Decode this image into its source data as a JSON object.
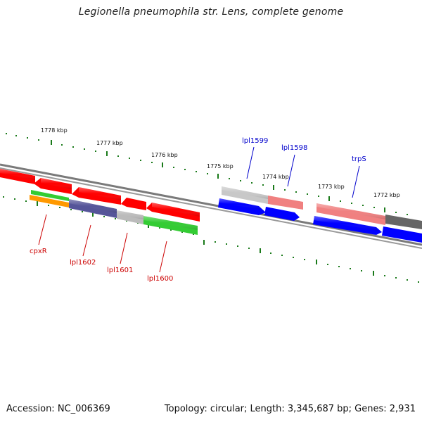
{
  "title": "Legionella pneumophila str. Lens, complete genome",
  "footer": {
    "accession": "Accession: NC_006369",
    "summary": "Topology: circular; Length: 3,345,687 bp; Genes: 2,931"
  },
  "ruler": {
    "kbp_labels": [
      "1778 kbp",
      "1777 kbp",
      "1776 kbp",
      "1775 kbp",
      "1774 kbp",
      "1773 kbp",
      "1772 kbp"
    ],
    "tick_color": "#1a7a1a"
  },
  "backbone_color": "#808080",
  "genes": [
    {
      "label": "",
      "strand": "forward",
      "color": "#ff0000"
    },
    {
      "label": "",
      "strand": "forward",
      "color": "#ff0000"
    },
    {
      "label": "",
      "strand": "forward",
      "color": "#ff0000"
    },
    {
      "label": "",
      "strand": "forward",
      "color": "#ff0000"
    },
    {
      "label": "",
      "strand": "forward",
      "color": "#ff0000"
    },
    {
      "label": "cpxR",
      "strand": "forward",
      "color": "#ff9900"
    },
    {
      "label": "lpl1602",
      "strand": "forward",
      "color": "#555599"
    },
    {
      "label": "lpl1601",
      "strand": "forward",
      "color": "#bbbbbb"
    },
    {
      "label": "lpl1600",
      "strand": "forward",
      "color": "#33cc33"
    },
    {
      "label": "lpl1599",
      "strand": "reverse",
      "color": "#c8c8c8"
    },
    {
      "label": "lpl1598",
      "strand": "reverse",
      "color": "#f08080"
    },
    {
      "label": "trpS",
      "strand": "reverse",
      "color": "#f08080"
    },
    {
      "label": "",
      "strand": "reverse",
      "color": "#666666"
    },
    {
      "label": "",
      "strand": "reverse",
      "color": "#0000ff"
    }
  ],
  "label_colors": {
    "forward": "#cc0000",
    "reverse": "#0000cc"
  }
}
